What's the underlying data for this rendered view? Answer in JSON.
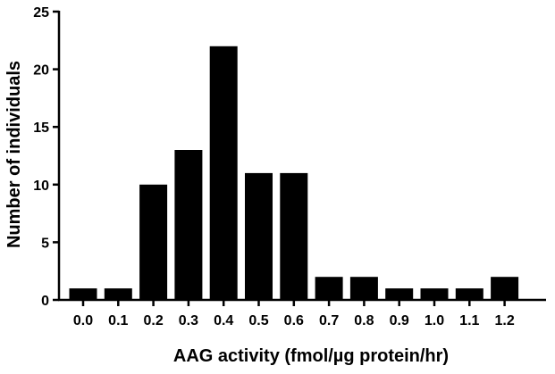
{
  "chart_data": {
    "type": "bar",
    "title": "",
    "xlabel": "AAG activity (fmol/µg protein/hr)",
    "ylabel": "Number of individuals",
    "categories": [
      "0.0",
      "0.1",
      "0.2",
      "0.3",
      "0.4",
      "0.5",
      "0.6",
      "0.7",
      "0.8",
      "0.9",
      "1.0",
      "1.1",
      "1.2"
    ],
    "values": [
      1,
      1,
      10,
      13,
      22,
      11,
      11,
      2,
      2,
      1,
      1,
      1,
      2
    ],
    "ylim": [
      0,
      25
    ],
    "yticks": [
      0,
      5,
      10,
      15,
      20,
      25
    ],
    "grid": false,
    "legend": "none",
    "bar_color": "#000000"
  }
}
